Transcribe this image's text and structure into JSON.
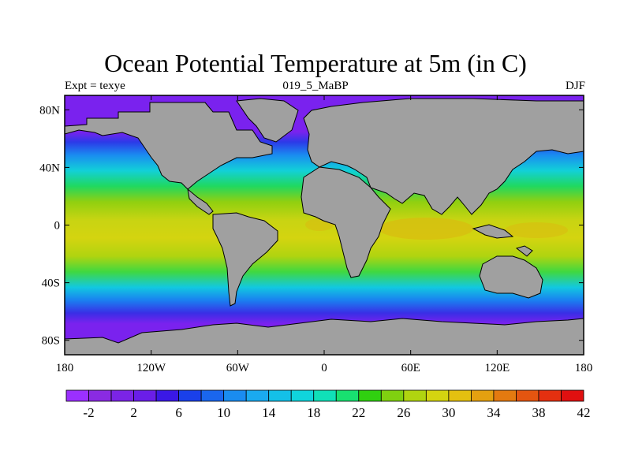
{
  "title": "Ocean Potential Temperature at 5m (in C)",
  "left_string": "Expt = texye",
  "center_string": "019_5_MaBP",
  "right_string": "DJF",
  "map": {
    "projection": "cylindrical equidistant",
    "lon_range": [
      -180,
      180
    ],
    "lat_range": [
      -90,
      90
    ],
    "land_color": "#a0a0a0",
    "x_ticks": [
      {
        "value": -180,
        "label": "180"
      },
      {
        "value": -120,
        "label": "120W"
      },
      {
        "value": -60,
        "label": "60W"
      },
      {
        "value": 0,
        "label": "0"
      },
      {
        "value": 60,
        "label": "60E"
      },
      {
        "value": 120,
        "label": "120E"
      },
      {
        "value": 180,
        "label": "180"
      }
    ],
    "y_ticks": [
      {
        "value": 80,
        "label": "80N"
      },
      {
        "value": 40,
        "label": "40N"
      },
      {
        "value": 0,
        "label": "0"
      },
      {
        "value": -40,
        "label": "40S"
      },
      {
        "value": -80,
        "label": "80S"
      }
    ]
  },
  "colorbar": {
    "colors": [
      "#9b30ff",
      "#8a2be2",
      "#7b24e6",
      "#6a1ee8",
      "#3a18e6",
      "#1a40ea",
      "#1a66ee",
      "#1a8cf0",
      "#1aaaf0",
      "#14c0e8",
      "#10d4dc",
      "#10e0b8",
      "#18e070",
      "#30d010",
      "#80d010",
      "#b0d410",
      "#d4d410",
      "#e4c010",
      "#e4a010",
      "#e47a10",
      "#e45510",
      "#e43010",
      "#e01010"
    ],
    "labels": [
      "-2",
      "2",
      "6",
      "10",
      "14",
      "18",
      "22",
      "26",
      "30",
      "34",
      "38",
      "42"
    ]
  }
}
